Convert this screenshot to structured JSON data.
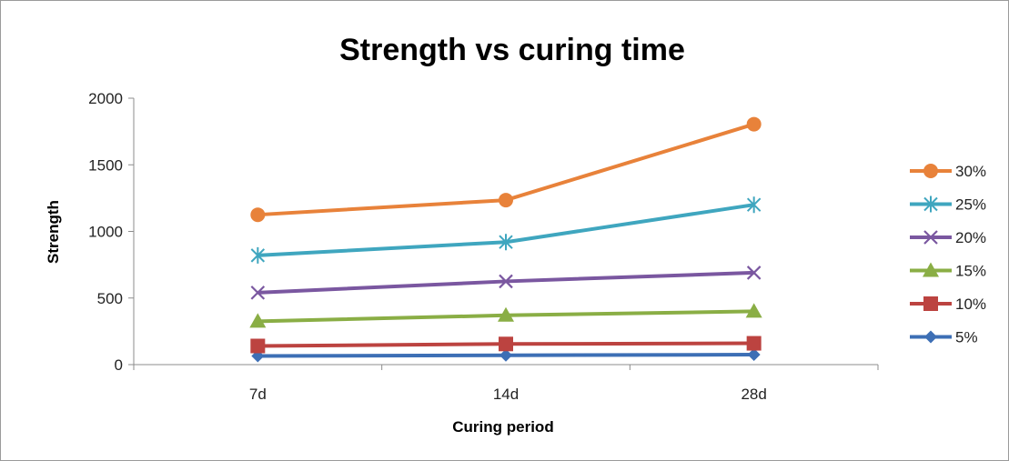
{
  "chart_data": {
    "type": "line",
    "title": "Strength vs curing time",
    "xlabel": "Curing period",
    "ylabel": "Strength",
    "categories": [
      "7d",
      "14d",
      "28d"
    ],
    "ylim": [
      0,
      2000
    ],
    "yticks": [
      0,
      500,
      1000,
      1500,
      2000
    ],
    "grid": false,
    "legend": "right",
    "series": [
      {
        "name": "30%",
        "color": "#E8823A",
        "marker": "circle",
        "values": [
          1125,
          1235,
          1805
        ]
      },
      {
        "name": "25%",
        "color": "#3FA6BF",
        "marker": "asterisk",
        "values": [
          820,
          920,
          1200
        ]
      },
      {
        "name": "20%",
        "color": "#7A57A0",
        "marker": "x",
        "values": [
          540,
          625,
          690
        ]
      },
      {
        "name": "15%",
        "color": "#8AAE45",
        "marker": "triangle",
        "values": [
          325,
          370,
          400
        ]
      },
      {
        "name": "10%",
        "color": "#BC4340",
        "marker": "square",
        "values": [
          140,
          155,
          160
        ]
      },
      {
        "name": "5%",
        "color": "#3D6FB5",
        "marker": "diamond",
        "values": [
          65,
          70,
          75
        ]
      }
    ]
  }
}
